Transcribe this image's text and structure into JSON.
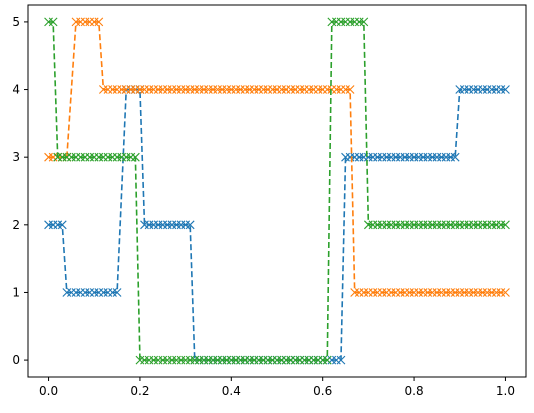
{
  "chart_data": {
    "type": "line",
    "title": "",
    "xlabel": "",
    "ylabel": "",
    "xlim": [
      -0.045,
      1.045
    ],
    "ylim": [
      -0.25,
      5.25
    ],
    "xticks": [
      0.0,
      0.2,
      0.4,
      0.6,
      0.8,
      1.0
    ],
    "xtick_labels": [
      "0.0",
      "0.2",
      "0.4",
      "0.6",
      "0.8",
      "1.0"
    ],
    "yticks": [
      0,
      1,
      2,
      3,
      4,
      5
    ],
    "ytick_labels": [
      "0",
      "1",
      "2",
      "3",
      "4",
      "5"
    ],
    "grid": false,
    "marker": "x",
    "linestyle": "dashed",
    "series": [
      {
        "color": "#1f77b4",
        "segments": [
          {
            "x_start": 0.0,
            "x_end": 0.03,
            "y": 2
          },
          {
            "x_start": 0.04,
            "x_end": 0.15,
            "y": 1
          },
          {
            "x_start": 0.17,
            "x_end": 0.2,
            "y": 4
          },
          {
            "x_start": 0.21,
            "x_end": 0.31,
            "y": 2
          },
          {
            "x_start": 0.32,
            "x_end": 0.64,
            "y": 0
          },
          {
            "x_start": 0.65,
            "x_end": 0.89,
            "y": 3
          },
          {
            "x_start": 0.9,
            "x_end": 1.0,
            "y": 4
          }
        ]
      },
      {
        "color": "#ff7f0e",
        "segments": [
          {
            "x_start": 0.0,
            "x_end": 0.04,
            "y": 3
          },
          {
            "x_start": 0.06,
            "x_end": 0.11,
            "y": 5
          },
          {
            "x_start": 0.12,
            "x_end": 0.66,
            "y": 4
          },
          {
            "x_start": 0.67,
            "x_end": 1.0,
            "y": 1
          }
        ]
      },
      {
        "color": "#2ca02c",
        "segments": [
          {
            "x_start": 0.0,
            "x_end": 0.01,
            "y": 5
          },
          {
            "x_start": 0.02,
            "x_end": 0.19,
            "y": 3
          },
          {
            "x_start": 0.2,
            "x_end": 0.61,
            "y": 0
          },
          {
            "x_start": 0.62,
            "x_end": 0.69,
            "y": 5
          },
          {
            "x_start": 0.7,
            "x_end": 1.0,
            "y": 2
          }
        ]
      }
    ]
  }
}
